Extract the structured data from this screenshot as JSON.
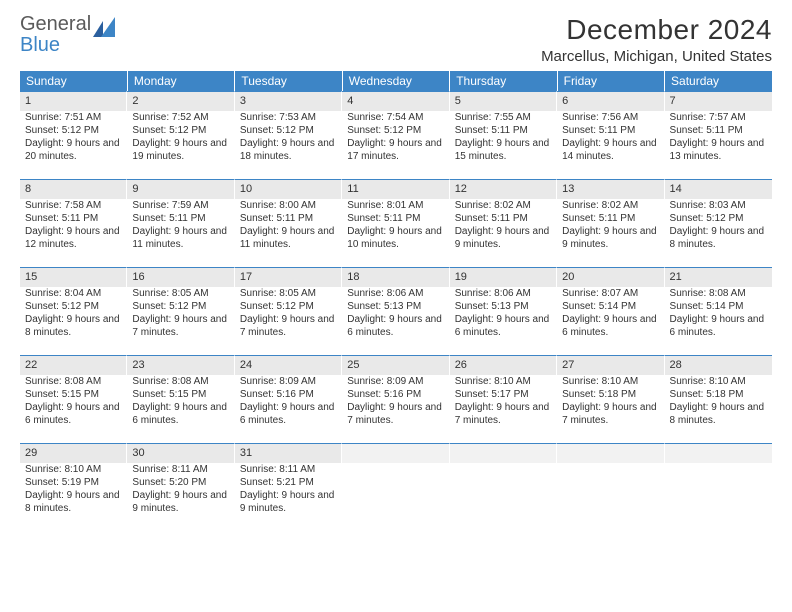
{
  "logo": {
    "general": "General",
    "blue": "Blue"
  },
  "header": {
    "month_title": "December 2024",
    "location": "Marcellus, Michigan, United States"
  },
  "colors": {
    "header_bg": "#3d85c6",
    "header_text": "#ffffff",
    "daybar_bg": "#e9e9e9",
    "daybar_border": "#3d85c6",
    "body_text": "#333333",
    "logo_gray": "#5a5a5a",
    "logo_blue": "#3d85c6",
    "page_bg": "#ffffff"
  },
  "typography": {
    "title_fontsize": 28,
    "location_fontsize": 15,
    "dayheader_fontsize": 12,
    "daynum_fontsize": 11,
    "body_fontsize": 10
  },
  "calendar": {
    "type": "table",
    "columns": [
      "Sunday",
      "Monday",
      "Tuesday",
      "Wednesday",
      "Thursday",
      "Friday",
      "Saturday"
    ],
    "weeks": [
      [
        {
          "day": "1",
          "sunrise": "Sunrise: 7:51 AM",
          "sunset": "Sunset: 5:12 PM",
          "daylight": "Daylight: 9 hours and 20 minutes."
        },
        {
          "day": "2",
          "sunrise": "Sunrise: 7:52 AM",
          "sunset": "Sunset: 5:12 PM",
          "daylight": "Daylight: 9 hours and 19 minutes."
        },
        {
          "day": "3",
          "sunrise": "Sunrise: 7:53 AM",
          "sunset": "Sunset: 5:12 PM",
          "daylight": "Daylight: 9 hours and 18 minutes."
        },
        {
          "day": "4",
          "sunrise": "Sunrise: 7:54 AM",
          "sunset": "Sunset: 5:12 PM",
          "daylight": "Daylight: 9 hours and 17 minutes."
        },
        {
          "day": "5",
          "sunrise": "Sunrise: 7:55 AM",
          "sunset": "Sunset: 5:11 PM",
          "daylight": "Daylight: 9 hours and 15 minutes."
        },
        {
          "day": "6",
          "sunrise": "Sunrise: 7:56 AM",
          "sunset": "Sunset: 5:11 PM",
          "daylight": "Daylight: 9 hours and 14 minutes."
        },
        {
          "day": "7",
          "sunrise": "Sunrise: 7:57 AM",
          "sunset": "Sunset: 5:11 PM",
          "daylight": "Daylight: 9 hours and 13 minutes."
        }
      ],
      [
        {
          "day": "8",
          "sunrise": "Sunrise: 7:58 AM",
          "sunset": "Sunset: 5:11 PM",
          "daylight": "Daylight: 9 hours and 12 minutes."
        },
        {
          "day": "9",
          "sunrise": "Sunrise: 7:59 AM",
          "sunset": "Sunset: 5:11 PM",
          "daylight": "Daylight: 9 hours and 11 minutes."
        },
        {
          "day": "10",
          "sunrise": "Sunrise: 8:00 AM",
          "sunset": "Sunset: 5:11 PM",
          "daylight": "Daylight: 9 hours and 11 minutes."
        },
        {
          "day": "11",
          "sunrise": "Sunrise: 8:01 AM",
          "sunset": "Sunset: 5:11 PM",
          "daylight": "Daylight: 9 hours and 10 minutes."
        },
        {
          "day": "12",
          "sunrise": "Sunrise: 8:02 AM",
          "sunset": "Sunset: 5:11 PM",
          "daylight": "Daylight: 9 hours and 9 minutes."
        },
        {
          "day": "13",
          "sunrise": "Sunrise: 8:02 AM",
          "sunset": "Sunset: 5:11 PM",
          "daylight": "Daylight: 9 hours and 9 minutes."
        },
        {
          "day": "14",
          "sunrise": "Sunrise: 8:03 AM",
          "sunset": "Sunset: 5:12 PM",
          "daylight": "Daylight: 9 hours and 8 minutes."
        }
      ],
      [
        {
          "day": "15",
          "sunrise": "Sunrise: 8:04 AM",
          "sunset": "Sunset: 5:12 PM",
          "daylight": "Daylight: 9 hours and 8 minutes."
        },
        {
          "day": "16",
          "sunrise": "Sunrise: 8:05 AM",
          "sunset": "Sunset: 5:12 PM",
          "daylight": "Daylight: 9 hours and 7 minutes."
        },
        {
          "day": "17",
          "sunrise": "Sunrise: 8:05 AM",
          "sunset": "Sunset: 5:12 PM",
          "daylight": "Daylight: 9 hours and 7 minutes."
        },
        {
          "day": "18",
          "sunrise": "Sunrise: 8:06 AM",
          "sunset": "Sunset: 5:13 PM",
          "daylight": "Daylight: 9 hours and 6 minutes."
        },
        {
          "day": "19",
          "sunrise": "Sunrise: 8:06 AM",
          "sunset": "Sunset: 5:13 PM",
          "daylight": "Daylight: 9 hours and 6 minutes."
        },
        {
          "day": "20",
          "sunrise": "Sunrise: 8:07 AM",
          "sunset": "Sunset: 5:14 PM",
          "daylight": "Daylight: 9 hours and 6 minutes."
        },
        {
          "day": "21",
          "sunrise": "Sunrise: 8:08 AM",
          "sunset": "Sunset: 5:14 PM",
          "daylight": "Daylight: 9 hours and 6 minutes."
        }
      ],
      [
        {
          "day": "22",
          "sunrise": "Sunrise: 8:08 AM",
          "sunset": "Sunset: 5:15 PM",
          "daylight": "Daylight: 9 hours and 6 minutes."
        },
        {
          "day": "23",
          "sunrise": "Sunrise: 8:08 AM",
          "sunset": "Sunset: 5:15 PM",
          "daylight": "Daylight: 9 hours and 6 minutes."
        },
        {
          "day": "24",
          "sunrise": "Sunrise: 8:09 AM",
          "sunset": "Sunset: 5:16 PM",
          "daylight": "Daylight: 9 hours and 6 minutes."
        },
        {
          "day": "25",
          "sunrise": "Sunrise: 8:09 AM",
          "sunset": "Sunset: 5:16 PM",
          "daylight": "Daylight: 9 hours and 7 minutes."
        },
        {
          "day": "26",
          "sunrise": "Sunrise: 8:10 AM",
          "sunset": "Sunset: 5:17 PM",
          "daylight": "Daylight: 9 hours and 7 minutes."
        },
        {
          "day": "27",
          "sunrise": "Sunrise: 8:10 AM",
          "sunset": "Sunset: 5:18 PM",
          "daylight": "Daylight: 9 hours and 7 minutes."
        },
        {
          "day": "28",
          "sunrise": "Sunrise: 8:10 AM",
          "sunset": "Sunset: 5:18 PM",
          "daylight": "Daylight: 9 hours and 8 minutes."
        }
      ],
      [
        {
          "day": "29",
          "sunrise": "Sunrise: 8:10 AM",
          "sunset": "Sunset: 5:19 PM",
          "daylight": "Daylight: 9 hours and 8 minutes."
        },
        {
          "day": "30",
          "sunrise": "Sunrise: 8:11 AM",
          "sunset": "Sunset: 5:20 PM",
          "daylight": "Daylight: 9 hours and 9 minutes."
        },
        {
          "day": "31",
          "sunrise": "Sunrise: 8:11 AM",
          "sunset": "Sunset: 5:21 PM",
          "daylight": "Daylight: 9 hours and 9 minutes."
        },
        {
          "day": "",
          "empty": true
        },
        {
          "day": "",
          "empty": true
        },
        {
          "day": "",
          "empty": true
        },
        {
          "day": "",
          "empty": true
        }
      ]
    ]
  }
}
